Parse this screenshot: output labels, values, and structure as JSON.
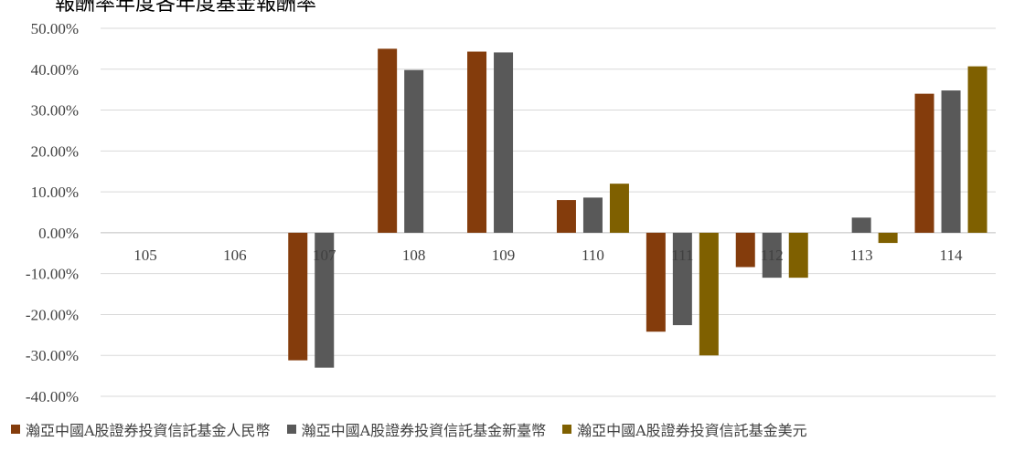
{
  "title": "報酬率年度各年度基金報酬率",
  "chart_data": {
    "type": "bar",
    "categories": [
      "105",
      "106",
      "107",
      "108",
      "109",
      "110",
      "111",
      "112",
      "113",
      "114"
    ],
    "series": [
      {
        "name": "瀚亞中國A股證券投資信託基金人民幣",
        "color": "#843C0C",
        "values": [
          null,
          null,
          -31.2,
          45.0,
          44.3,
          8.0,
          -24.2,
          -8.4,
          null,
          34.0
        ]
      },
      {
        "name": "瀚亞中國A股證券投資信託基金新臺幣",
        "color": "#595959",
        "values": [
          null,
          null,
          -33.0,
          39.8,
          44.1,
          8.6,
          -22.6,
          -11.0,
          3.7,
          34.8
        ]
      },
      {
        "name": "瀚亞中國A股證券投資信託基金美元",
        "color": "#7F6000",
        "values": [
          null,
          null,
          null,
          null,
          null,
          12.0,
          -30.0,
          -11.0,
          -2.5,
          40.7
        ]
      }
    ],
    "yticks": [
      "50.00%",
      "40.00%",
      "30.00%",
      "20.00%",
      "10.00%",
      "0.00%",
      "-10.00%",
      "-20.00%",
      "-30.00%",
      "-40.00%"
    ],
    "ylim": [
      -40,
      50
    ],
    "grid": true,
    "legend_position": "bottom"
  }
}
